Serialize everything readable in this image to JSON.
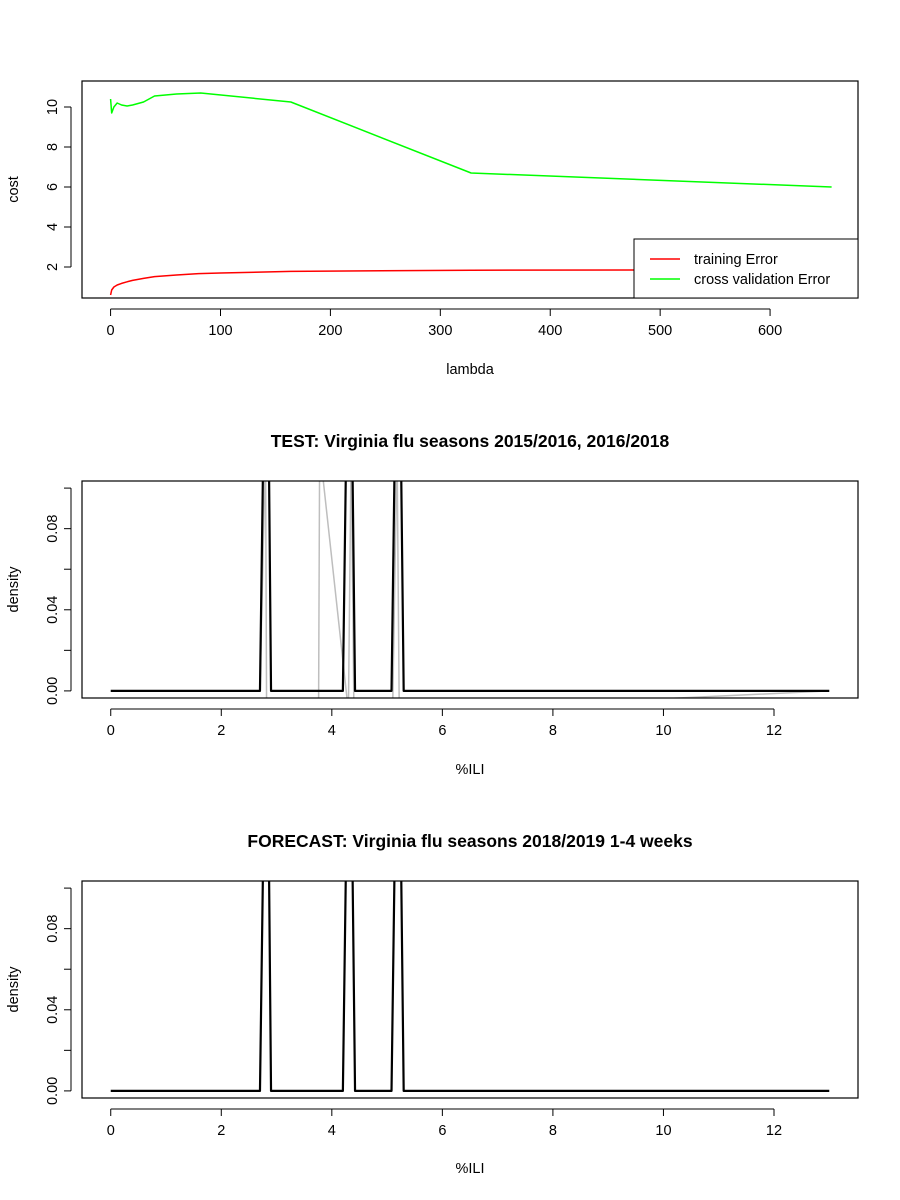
{
  "chart_data": [
    {
      "type": "line",
      "title": "",
      "xlabel": "lambda",
      "ylabel": "cost",
      "xlim": [
        -26,
        680
      ],
      "ylim": [
        0.45,
        11.3
      ],
      "xticks": [
        0,
        100,
        200,
        300,
        400,
        500,
        600
      ],
      "yticks": [
        2,
        4,
        6,
        8,
        10
      ],
      "grid": false,
      "legend": "bottom-right",
      "series": [
        {
          "name": "training Error",
          "color": "#ff0000",
          "points": [
            [
              0,
              0.6
            ],
            [
              1,
              0.85
            ],
            [
              3,
              1.0
            ],
            [
              6,
              1.1
            ],
            [
              10,
              1.18
            ],
            [
              15,
              1.26
            ],
            [
              20,
              1.33
            ],
            [
              30,
              1.43
            ],
            [
              40,
              1.52
            ],
            [
              60,
              1.6
            ],
            [
              80,
              1.67
            ],
            [
              100,
              1.7
            ],
            [
              164,
              1.78
            ],
            [
              328,
              1.84
            ],
            [
              480,
              1.85
            ]
          ]
        },
        {
          "name": "cross validation Error",
          "color": "#00ff00",
          "points": [
            [
              0,
              10.4
            ],
            [
              1,
              9.7
            ],
            [
              3,
              10.0
            ],
            [
              6,
              10.2
            ],
            [
              10,
              10.1
            ],
            [
              15,
              10.05
            ],
            [
              20,
              10.1
            ],
            [
              30,
              10.25
            ],
            [
              40,
              10.55
            ],
            [
              60,
              10.65
            ],
            [
              82,
              10.7
            ],
            [
              164,
              10.25
            ],
            [
              328,
              6.7
            ],
            [
              656,
              6.0
            ]
          ]
        }
      ]
    },
    {
      "type": "line",
      "title": "TEST: Virginia  flu seasons 2015/2016, 2016/2018",
      "xlabel": "%ILI",
      "ylabel": "density",
      "xlim": [
        -0.52,
        13.52
      ],
      "ylim": [
        -0.0035,
        0.1035
      ],
      "xticks": [
        0,
        2,
        4,
        6,
        8,
        10,
        12
      ],
      "xtick_labels": [
        "0",
        "2",
        "4",
        "6",
        "8",
        "10",
        "12"
      ],
      "yticks": [
        0.0,
        0.02,
        0.04,
        0.06,
        0.08,
        0.1
      ],
      "ytick_labels": [
        "0.00",
        "",
        "0.04",
        "",
        "0.08",
        ""
      ],
      "grid": false,
      "series": [
        {
          "color": "#bebebe",
          "points": [
            [
              0,
              0
            ],
            [
              2.7,
              0
            ],
            [
              2.8,
              0.12
            ],
            [
              2.82,
              -0.01
            ],
            [
              3.76,
              -0.01
            ],
            [
              3.78,
              0.12
            ],
            [
              4.3,
              -0.01
            ],
            [
              4.35,
              0.12
            ],
            [
              4.4,
              -0.01
            ],
            [
              5.1,
              -0.01
            ],
            [
              5.18,
              0.12
            ],
            [
              5.22,
              -0.01
            ],
            [
              13,
              0
            ]
          ]
        },
        {
          "color": "#000000",
          "points": [
            [
              0,
              0
            ],
            [
              2.7,
              0
            ],
            [
              2.76,
              0.12
            ],
            [
              2.86,
              0.12
            ],
            [
              2.9,
              0
            ],
            [
              4.2,
              0
            ],
            [
              4.26,
              0.12
            ],
            [
              4.37,
              0.12
            ],
            [
              4.42,
              0
            ],
            [
              5.08,
              0
            ],
            [
              5.14,
              0.12
            ],
            [
              5.25,
              0.12
            ],
            [
              5.3,
              0
            ],
            [
              13,
              0
            ]
          ]
        }
      ]
    },
    {
      "type": "line",
      "title": "FORECAST: Virginia flu seasons 2018/2019 1-4 weeks",
      "xlabel": "%ILI",
      "ylabel": "density",
      "xlim": [
        -0.52,
        13.52
      ],
      "ylim": [
        -0.0035,
        0.1035
      ],
      "xticks": [
        0,
        2,
        4,
        6,
        8,
        10,
        12
      ],
      "xtick_labels": [
        "0",
        "2",
        "4",
        "6",
        "8",
        "10",
        "12"
      ],
      "yticks": [
        0.0,
        0.02,
        0.04,
        0.06,
        0.08,
        0.1
      ],
      "ytick_labels": [
        "0.00",
        "",
        "0.04",
        "",
        "0.08",
        ""
      ],
      "grid": false,
      "series": [
        {
          "color": "#000000",
          "points": [
            [
              0,
              0
            ],
            [
              2.7,
              0
            ],
            [
              2.76,
              0.12
            ],
            [
              2.86,
              0.12
            ],
            [
              2.9,
              0
            ],
            [
              4.2,
              0
            ],
            [
              4.26,
              0.12
            ],
            [
              4.37,
              0.12
            ],
            [
              4.42,
              0
            ],
            [
              5.08,
              0
            ],
            [
              5.14,
              0.12
            ],
            [
              5.25,
              0.12
            ],
            [
              5.3,
              0
            ],
            [
              13,
              0
            ]
          ]
        }
      ]
    }
  ]
}
